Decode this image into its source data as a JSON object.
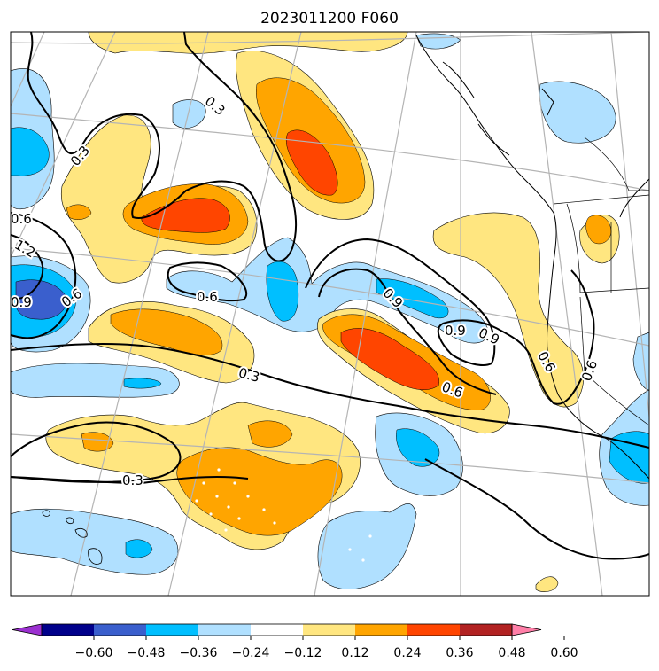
{
  "title": "2023011200 F060",
  "colorbar": {
    "bins": [
      "#9b30d0",
      "#00008b",
      "#3a5fcd",
      "#00bfff",
      "#b0e0ff",
      "#ffffff",
      "#ffe680",
      "#ffa500",
      "#ff4500",
      "#b22222",
      "#ff7fa8"
    ],
    "ticks": [
      "−0.60",
      "−0.48",
      "−0.36",
      "−0.24",
      "−0.12",
      "0.12",
      "0.24",
      "0.36",
      "0.48",
      "0.60"
    ]
  },
  "contour_labels": [
    "0.3",
    "0.3",
    "0.6",
    "1.2",
    "0.9",
    "0.6",
    "0.6",
    "0.9",
    "0.9",
    "0.9",
    "0.6",
    "0.6",
    "0.6",
    "0.3",
    "0.3"
  ],
  "colors": {
    "light_blue": "#b0e0ff",
    "cyan": "#00bfff",
    "royal_blue": "#3a5fcd",
    "yellow": "#ffe680",
    "orange": "#ffa500",
    "red_orange": "#ff4500",
    "contour": "#000000",
    "grid": "#b4b4b4"
  }
}
